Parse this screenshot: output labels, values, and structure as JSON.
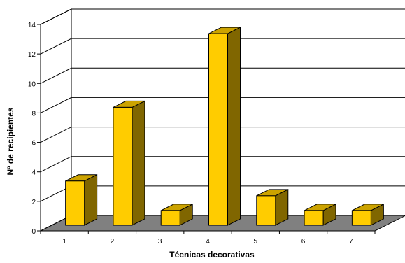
{
  "chart_data": {
    "type": "bar",
    "title": "",
    "xlabel": "Técnicas decorativas",
    "ylabel": "Nº de recipientes",
    "categories": [
      "1",
      "2",
      "3",
      "4",
      "5",
      "6",
      "7"
    ],
    "values": [
      3,
      8,
      1,
      13,
      2,
      1,
      1
    ],
    "ylim": [
      0,
      14
    ],
    "yticks": [
      0,
      2,
      4,
      6,
      8,
      10,
      12,
      14
    ],
    "grid": true,
    "legend": "none",
    "three_d": true,
    "colors": {
      "bar_front": "#FFCC00",
      "bar_top": "#CCA300",
      "bar_side": "#806600",
      "floor": "#808080",
      "grid": "#000000"
    }
  }
}
